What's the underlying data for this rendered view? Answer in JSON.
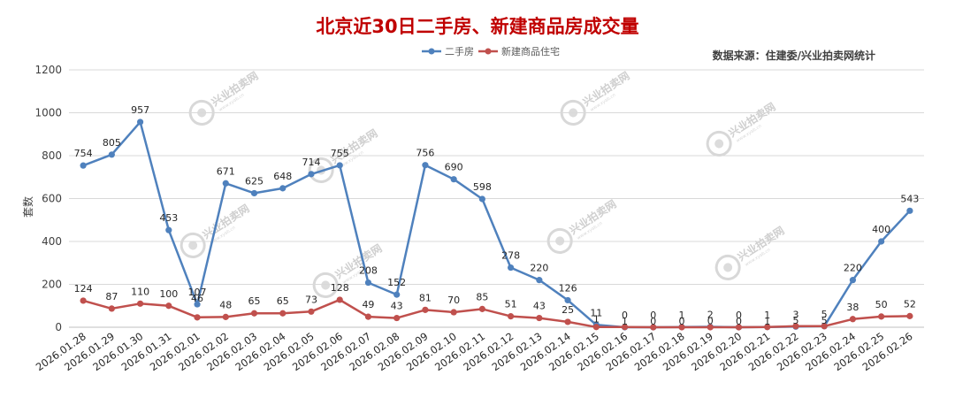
{
  "chart_data": {
    "type": "line",
    "title": "北京近30日二手房、新建商品房成交量",
    "source_note": "数据来源：住建委/兴业拍卖网统计",
    "ylabel": "套数",
    "xlabel": "",
    "ylim": [
      0,
      1200
    ],
    "yticks": [
      0,
      200,
      400,
      600,
      800,
      1000,
      1200
    ],
    "grid": true,
    "legend_position": "top-center",
    "categories": [
      "2026.01.28",
      "2026.01.29",
      "2026.01.30",
      "2026.01.31",
      "2026.02.01",
      "2026.02.02",
      "2026.02.03",
      "2026.02.04",
      "2026.02.05",
      "2026.02.06",
      "2026.02.07",
      "2026.02.08",
      "2026.02.09",
      "2026.02.10",
      "2026.02.11",
      "2026.02.12",
      "2026.02.13",
      "2026.02.14",
      "2026.02.15",
      "2026.02.16",
      "2026.02.17",
      "2026.02.18",
      "2026.02.19",
      "2026.02.20",
      "2026.02.21",
      "2026.02.22",
      "2026.02.23",
      "2026.02.24",
      "2026.02.25",
      "2026.02.26"
    ],
    "series": [
      {
        "name": "二手房",
        "color": "#4f81bd",
        "values": [
          754,
          805,
          957,
          453,
          107,
          671,
          625,
          648,
          714,
          755,
          208,
          152,
          756,
          690,
          598,
          278,
          220,
          126,
          11,
          0,
          0,
          1,
          2,
          0,
          1,
          3,
          5,
          220,
          400,
          543
        ]
      },
      {
        "name": "新建商品住宅",
        "color": "#c0504d",
        "values": [
          124,
          87,
          110,
          100,
          46,
          48,
          65,
          65,
          73,
          128,
          49,
          43,
          81,
          70,
          85,
          51,
          43,
          25,
          1,
          1,
          0,
          0,
          0,
          0,
          1,
          5,
          5,
          38,
          50,
          52
        ]
      }
    ]
  },
  "watermark": {
    "text": "兴业拍卖网",
    "url": "www.xyab.cn"
  }
}
